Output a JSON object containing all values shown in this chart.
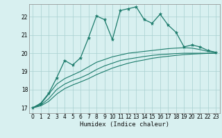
{
  "xlabel": "Humidex (Indice chaleur)",
  "bg_color": "#d8f0f0",
  "line_color": "#1a7a6a",
  "grid_color": "#a8d0d0",
  "xlim": [
    -0.5,
    23.5
  ],
  "ylim": [
    16.7,
    22.7
  ],
  "yticks": [
    17,
    18,
    19,
    20,
    21,
    22
  ],
  "xticks": [
    0,
    1,
    2,
    3,
    4,
    5,
    6,
    7,
    8,
    9,
    10,
    11,
    12,
    13,
    14,
    15,
    16,
    17,
    18,
    19,
    20,
    21,
    22,
    23
  ],
  "curve1_x": [
    0,
    1,
    2,
    3,
    4,
    5,
    6,
    7,
    8,
    9,
    10,
    11,
    12,
    13,
    14,
    15,
    16,
    17,
    18,
    19,
    20,
    21,
    22,
    23
  ],
  "curve1_y": [
    17.0,
    17.25,
    17.8,
    18.65,
    19.6,
    19.35,
    19.75,
    20.85,
    22.05,
    21.85,
    20.75,
    22.35,
    22.45,
    22.55,
    21.85,
    21.65,
    22.15,
    21.55,
    21.15,
    20.35,
    20.45,
    20.35,
    20.15,
    20.05
  ],
  "curve2_x": [
    0,
    1,
    2,
    3,
    4,
    5,
    6,
    7,
    8,
    9,
    10,
    11,
    12,
    13,
    14,
    15,
    16,
    17,
    18,
    19,
    20,
    21,
    22,
    23
  ],
  "curve2_y": [
    17.0,
    17.2,
    17.75,
    18.3,
    18.6,
    18.8,
    19.0,
    19.25,
    19.5,
    19.65,
    19.8,
    19.9,
    20.0,
    20.05,
    20.1,
    20.15,
    20.2,
    20.25,
    20.28,
    20.3,
    20.28,
    20.2,
    20.1,
    20.05
  ],
  "curve3_x": [
    0,
    1,
    2,
    3,
    4,
    5,
    6,
    7,
    8,
    9,
    10,
    11,
    12,
    13,
    14,
    15,
    16,
    17,
    18,
    19,
    20,
    21,
    22,
    23
  ],
  "curve3_y": [
    17.0,
    17.15,
    17.5,
    18.0,
    18.3,
    18.5,
    18.65,
    18.85,
    19.1,
    19.3,
    19.45,
    19.6,
    19.68,
    19.75,
    19.82,
    19.88,
    19.92,
    19.95,
    19.98,
    20.0,
    20.0,
    20.0,
    20.0,
    20.0
  ],
  "curve4_x": [
    0,
    1,
    2,
    3,
    4,
    5,
    6,
    7,
    8,
    9,
    10,
    11,
    12,
    13,
    14,
    15,
    16,
    17,
    18,
    19,
    20,
    21,
    22,
    23
  ],
  "curve4_y": [
    17.0,
    17.1,
    17.35,
    17.75,
    18.05,
    18.25,
    18.42,
    18.6,
    18.82,
    19.0,
    19.18,
    19.32,
    19.45,
    19.55,
    19.63,
    19.72,
    19.78,
    19.83,
    19.88,
    19.92,
    19.95,
    19.97,
    19.99,
    20.0
  ]
}
